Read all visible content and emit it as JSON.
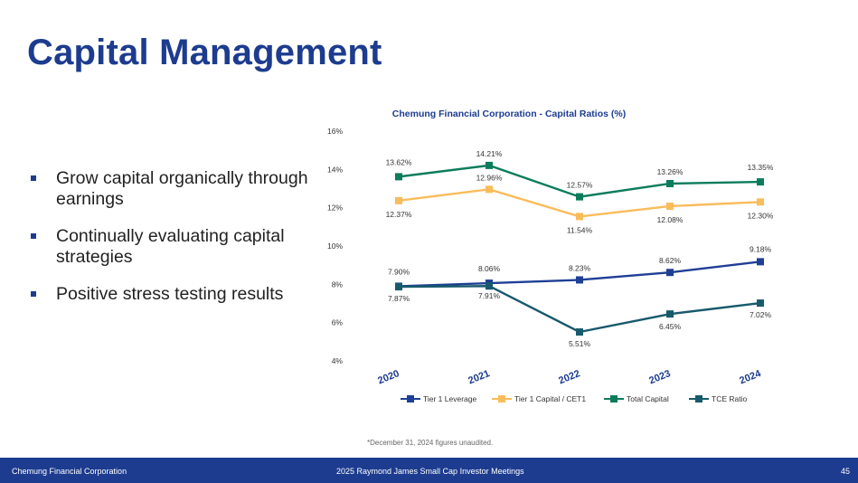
{
  "slide": {
    "title": "Capital Management",
    "bullets": [
      "Grow capital organically through earnings",
      "Continually evaluating capital strategies",
      "Positive stress testing results"
    ],
    "footnote": "*December 31, 2024 figures unaudited."
  },
  "footer": {
    "left": "Chemung Financial Corporation",
    "center": "2025 Raymond James Small Cap Investor Meetings",
    "page": "45"
  },
  "chart_data": {
    "type": "line",
    "title": "Chemung Financial Corporation - Capital Ratios (%)",
    "categories": [
      "2020",
      "2021",
      "2022",
      "2023",
      "2024"
    ],
    "ylim": [
      4,
      16
    ],
    "yticks": [
      "4%",
      "6%",
      "8%",
      "10%",
      "12%",
      "14%",
      "16%"
    ],
    "ytick_values": [
      4,
      6,
      8,
      10,
      12,
      14,
      16
    ],
    "series": [
      {
        "name": "Tier 1 Leverage",
        "color": "#1f3f96",
        "values": [
          7.9,
          8.06,
          8.23,
          8.62,
          9.18
        ],
        "labels": [
          "7.90%",
          "8.06%",
          "8.23%",
          "8.62%",
          "9.18%"
        ]
      },
      {
        "name": "Tier 1 Capital / CET1",
        "color": "#f9bc5a",
        "values": [
          12.37,
          12.96,
          11.54,
          12.08,
          12.3
        ],
        "labels": [
          "12.37%",
          "12.96%",
          "11.54%",
          "12.08%",
          "12.30%"
        ]
      },
      {
        "name": "Total Capital",
        "color": "#0c7c5c",
        "values": [
          13.62,
          14.21,
          12.57,
          13.26,
          13.35
        ],
        "labels": [
          "13.62%",
          "14.21%",
          "12.57%",
          "13.26%",
          "13.35%"
        ]
      },
      {
        "name": "TCE Ratio",
        "color": "#175a6b",
        "values": [
          7.87,
          7.91,
          5.51,
          6.45,
          7.02
        ],
        "labels": [
          "7.87%",
          "7.91%",
          "5.51%",
          "6.45%",
          "7.02%"
        ]
      }
    ],
    "legend": "bottom",
    "grid": false
  }
}
